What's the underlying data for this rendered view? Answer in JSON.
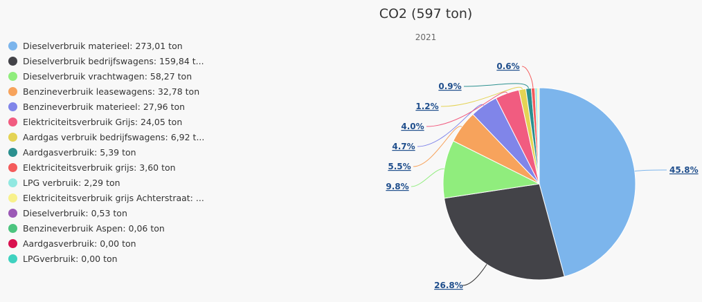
{
  "chart_data": {
    "type": "pie",
    "title": "CO2 (597 ton)",
    "subtitle": "2021",
    "legend_position": "left",
    "series": [
      {
        "label": "Dieselverbruik materieel: 273,01 ton",
        "value": 273.01,
        "percent_label": "45.8%",
        "color": "#7cb5ec"
      },
      {
        "label": "Dieselverbruik bedrijfswagens: 159,84 t...",
        "value": 159.84,
        "percent_label": "26.8%",
        "color": "#434348"
      },
      {
        "label": "Dieselverbruik vrachtwagen: 58,27 ton",
        "value": 58.27,
        "percent_label": "9.8%",
        "color": "#90ed7d"
      },
      {
        "label": "Benzineverbruik leasewagens: 32,78 ton",
        "value": 32.78,
        "percent_label": "5.5%",
        "color": "#f7a35c"
      },
      {
        "label": "Benzineverbruik materieel: 27,96 ton",
        "value": 27.96,
        "percent_label": "4.7%",
        "color": "#8085e9"
      },
      {
        "label": "Elektriciteitsverbruik Grijs: 24,05 ton",
        "value": 24.05,
        "percent_label": "4.0%",
        "color": "#f15c80"
      },
      {
        "label": "Aardgas verbruik bedrijfswagens: 6,92 t...",
        "value": 6.92,
        "percent_label": "1.2%",
        "color": "#e4d354"
      },
      {
        "label": "Aardgasverbruik: 5,39 ton",
        "value": 5.39,
        "percent_label": "0.9%",
        "color": "#2b908f"
      },
      {
        "label": "Elektriciteitsverbruik grijs: 3,60 ton",
        "value": 3.6,
        "percent_label": "0.6%",
        "color": "#f45b5b"
      },
      {
        "label": "LPG verbruik: 2,29 ton",
        "value": 2.29,
        "percent_label": "",
        "color": "#91e8e1"
      },
      {
        "label": "Elektriciteitsverbruik grijs Achterstraat: ...",
        "value": 1.5,
        "percent_label": "",
        "color": "#f8f18c"
      },
      {
        "label": "Dieselverbruik: 0,53 ton",
        "value": 0.53,
        "percent_label": "",
        "color": "#9b59b6"
      },
      {
        "label": "Benzineverbruik Aspen: 0,06 ton",
        "value": 0.06,
        "percent_label": "",
        "color": "#4cc47f"
      },
      {
        "label": "Aardgasverbruik: 0,00 ton",
        "value": 0.0,
        "percent_label": "",
        "color": "#d9114f"
      },
      {
        "label": "LPGverbruik: 0,00 ton",
        "value": 0.0,
        "percent_label": "",
        "color": "#3fd2c0"
      }
    ]
  }
}
